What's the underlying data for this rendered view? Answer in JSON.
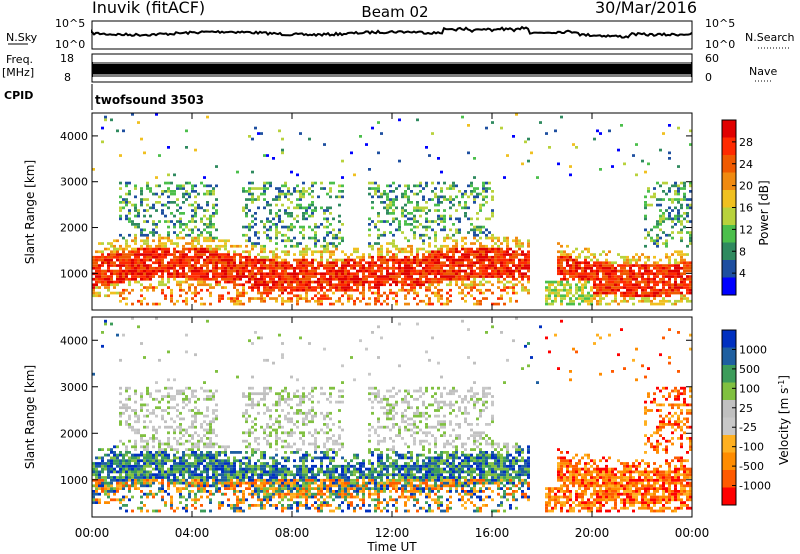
{
  "header": {
    "station": "Inuvik (fitACF)",
    "beam": "Beam 02",
    "date": "30/Mar/2016"
  },
  "panels": {
    "nsky": {
      "label": "N.Sky",
      "right_label": "N.Search",
      "left_ticks": [
        "10^5",
        "10^0"
      ],
      "right_ticks": [
        "10^5",
        "10^0"
      ]
    },
    "freq": {
      "label_line1": "Freq.",
      "label_line2": "[MHz]",
      "right_label": "Nave",
      "left_ticks": [
        "18",
        "8"
      ],
      "right_ticks": [
        "60",
        "0"
      ]
    },
    "cpid": {
      "label": "CPID",
      "program": "twofsound 3503"
    }
  },
  "colors": {
    "power": [
      "#0000ff",
      "#1e4fa0",
      "#2f8a5f",
      "#4bbf4b",
      "#b8d23c",
      "#f0c020",
      "#f08a10",
      "#f05a00",
      "#ff2a00",
      "#e00000"
    ],
    "velocity": [
      "#ff0000",
      "#ff5a00",
      "#ff8c00",
      "#ffb020",
      "#c8c8c8",
      "#c0c0c0",
      "#80c040",
      "#3c9c5a",
      "#1e5fa0",
      "#0030c0"
    ]
  },
  "chart_data": [
    {
      "type": "heatmap",
      "name": "power",
      "ylabel": "Slant Range [km]",
      "yticks": [
        "1000",
        "2000",
        "3000",
        "4000"
      ],
      "ylim": [
        200,
        4500
      ],
      "xlim": [
        0,
        24
      ],
      "colorbar_label": "Power [dB]",
      "colorbar_ticks": [
        "4",
        "8",
        "12",
        "16",
        "20",
        "24",
        "28"
      ],
      "colorbar_range": [
        0,
        32
      ]
    },
    {
      "type": "heatmap",
      "name": "velocity",
      "ylabel": "Slant Range [km]",
      "yticks": [
        "1000",
        "2000",
        "3000",
        "4000"
      ],
      "ylim": [
        200,
        4500
      ],
      "xlim": [
        0,
        24
      ],
      "colorbar_label": "Velocity [m s",
      "colorbar_label_sup": "-1",
      "colorbar_label_end": "]",
      "colorbar_ticks": [
        "1000",
        "500",
        "100",
        "25",
        "-25",
        "-100",
        "-500",
        "-1000"
      ]
    }
  ],
  "xaxis": {
    "ticks": [
      "00:00",
      "04:00",
      "08:00",
      "12:00",
      "16:00",
      "20:00",
      "00:00"
    ],
    "label": "Time UT"
  }
}
